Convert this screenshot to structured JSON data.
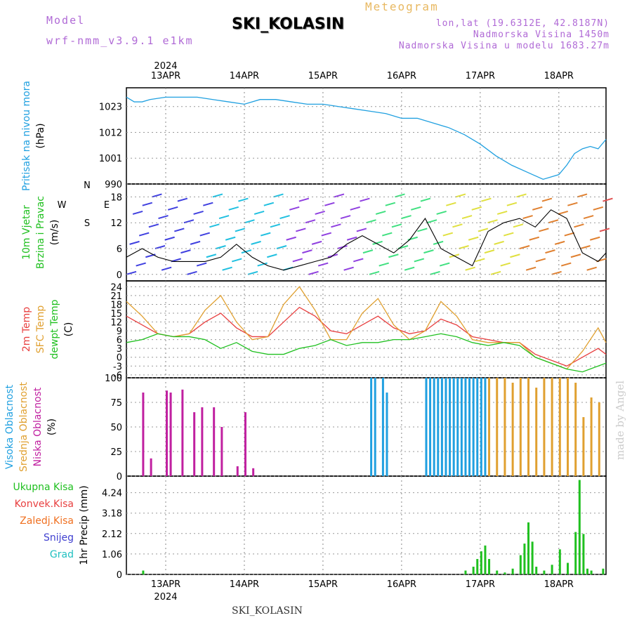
{
  "header": {
    "model_label": "Model",
    "model_name": "wrf-nmm_v3.9.1 e1km",
    "title": "SKI_KOLASIN",
    "meteogram": "Meteogram",
    "lonlat": "lon,lat (19.6312E, 42.8187N)",
    "altitude": "Nadmorska Visina 1450m",
    "model_altitude": "Nadmorska Visina u modelu 1683.27m",
    "year": "2024",
    "footer": "SKI_KOLASIN",
    "watermark": "made by Angel"
  },
  "colors": {
    "pressure": "#20a0e0",
    "temp2m": "#e84040",
    "sfc": "#e0a030",
    "dew": "#20c020",
    "high": "#20a0e0",
    "mid": "#e0a030",
    "low": "#c020a0",
    "total": "#20c020",
    "conv": "#e84040",
    "frz": "#f07020",
    "snow": "#4040d0",
    "grad": "#20c0c0"
  },
  "chart_data": [
    {
      "type": "line",
      "name": "pressure",
      "ylabel_lines": [
        "Pritisak na nivou mora",
        "(hPa)"
      ],
      "yticks": [
        990,
        1001,
        1012,
        1023
      ],
      "ylim": [
        990,
        1031
      ],
      "x": [
        0,
        0.1,
        0.2,
        0.3,
        0.5,
        0.7,
        0.9,
        1.1,
        1.3,
        1.5,
        1.7,
        1.9,
        2.1,
        2.3,
        2.5,
        2.7,
        2.9,
        3.1,
        3.3,
        3.5,
        3.7,
        3.9,
        4.1,
        4.3,
        4.5,
        4.7,
        4.9,
        5.1,
        5.3,
        5.5,
        5.6,
        5.7,
        5.8,
        5.9,
        6.0,
        6.1
      ],
      "y": [
        1027,
        1025,
        1025,
        1026,
        1027,
        1027,
        1027,
        1026,
        1025,
        1024,
        1026,
        1026,
        1025,
        1024,
        1024,
        1023,
        1022,
        1021,
        1020,
        1018,
        1018,
        1016,
        1014,
        1011,
        1007,
        1002,
        998,
        995,
        992,
        994,
        998,
        1003,
        1005,
        1006,
        1005,
        1009
      ]
    },
    {
      "type": "line",
      "name": "wind",
      "ylabel_lines": [
        "10m Vjetar",
        "Brzina i Pravac",
        "(m/s)"
      ],
      "compass": [
        "N",
        "E",
        "S",
        "W"
      ],
      "yticks": [
        0,
        6,
        12,
        18
      ],
      "ylim": [
        -1.5,
        21
      ],
      "x": [
        0,
        0.2,
        0.4,
        0.6,
        0.8,
        1.0,
        1.2,
        1.4,
        1.6,
        1.8,
        2.0,
        2.2,
        2.4,
        2.6,
        2.8,
        3.0,
        3.2,
        3.4,
        3.6,
        3.8,
        4.0,
        4.2,
        4.4,
        4.6,
        4.8,
        5.0,
        5.2,
        5.4,
        5.6,
        5.8,
        6.0,
        6.1
      ],
      "y": [
        4,
        6,
        4,
        3,
        3,
        3,
        4,
        7,
        4,
        2,
        1,
        2,
        3,
        4,
        7,
        9,
        7,
        5,
        8,
        13,
        6,
        4,
        2,
        10,
        12,
        13,
        11,
        15,
        13,
        5,
        3,
        5
      ]
    },
    {
      "type": "line",
      "name": "temperature",
      "ylabel_lines": [
        "2m Temp",
        "SFC Temp",
        "dewpt Temp",
        "(C)"
      ],
      "yticks": [
        -6,
        -3,
        0,
        3,
        6,
        9,
        12,
        15,
        18,
        21,
        24
      ],
      "ylim": [
        -7,
        26
      ],
      "x": [
        0,
        0.2,
        0.4,
        0.6,
        0.8,
        1.0,
        1.2,
        1.4,
        1.6,
        1.8,
        2.0,
        2.2,
        2.4,
        2.6,
        2.8,
        3.0,
        3.2,
        3.4,
        3.6,
        3.8,
        4.0,
        4.2,
        4.4,
        4.6,
        4.8,
        5.0,
        5.2,
        5.4,
        5.6,
        5.8,
        6.0,
        6.1
      ],
      "series": [
        {
          "name": "2m Temp",
          "values": [
            14,
            11,
            8,
            7,
            8,
            12,
            15,
            10,
            7,
            7,
            12,
            17,
            14,
            9,
            8,
            11,
            14,
            10,
            8,
            9,
            13,
            11,
            7,
            6,
            5,
            5,
            1,
            -1,
            -3,
            0,
            3,
            1
          ]
        },
        {
          "name": "SFC Temp",
          "values": [
            19,
            14,
            8,
            7,
            8,
            16,
            21,
            12,
            6,
            7,
            18,
            24,
            16,
            6,
            6,
            15,
            20,
            11,
            6,
            9,
            19,
            14,
            6,
            5,
            5,
            5,
            0,
            -2,
            -4,
            2,
            10,
            5
          ]
        },
        {
          "name": "dewpt Temp",
          "values": [
            5,
            6,
            8,
            7,
            7,
            6,
            3,
            5,
            2,
            1,
            1,
            3,
            4,
            6,
            4,
            5,
            5,
            6,
            6,
            7,
            8,
            7,
            5,
            4,
            5,
            4,
            0,
            -2,
            -4,
            -5,
            -3,
            -2
          ]
        }
      ]
    },
    {
      "type": "bar",
      "name": "cloud",
      "ylabel_lines": [
        "Visoka Oblacnost",
        "Srednja Oblacnost",
        "Niska Oblacnost",
        "(%)"
      ],
      "yticks": [
        0,
        25,
        50,
        75,
        100
      ],
      "ylim": [
        0,
        100
      ],
      "series": [
        {
          "name": "Niska",
          "x": [
            0.2,
            0.3,
            0.5,
            0.55,
            0.7,
            0.85,
            0.95,
            1.1,
            1.2,
            1.4,
            1.5,
            1.6
          ],
          "values": [
            85,
            18,
            87,
            85,
            88,
            65,
            70,
            70,
            50,
            10,
            65,
            8
          ]
        },
        {
          "name": "Visoka",
          "x": [
            3.1,
            3.15,
            3.25,
            3.3,
            3.8,
            3.85,
            3.9,
            3.95,
            4.0,
            4.05,
            4.1,
            4.15,
            4.2,
            4.25,
            4.3,
            4.35,
            4.4,
            4.45,
            4.5,
            4.55
          ],
          "values": [
            100,
            100,
            100,
            85,
            100,
            100,
            100,
            100,
            100,
            100,
            100,
            100,
            100,
            100,
            100,
            100,
            100,
            100,
            100,
            100
          ]
        },
        {
          "name": "Srednja",
          "x": [
            4.6,
            4.7,
            4.8,
            4.9,
            5.0,
            5.1,
            5.2,
            5.3,
            5.4,
            5.5,
            5.6,
            5.7,
            5.8,
            5.9,
            6.0
          ],
          "values": [
            100,
            100,
            100,
            95,
            100,
            100,
            90,
            100,
            100,
            100,
            100,
            95,
            60,
            80,
            75
          ]
        }
      ]
    },
    {
      "type": "bar",
      "name": "precip",
      "ylabel_lines": [
        "Ukupna Kisa",
        "Konvek.Kisa",
        "Zaledj.Kisa",
        "Snijeg",
        "Grad",
        "1hr Precip (mm)"
      ],
      "yticks": [
        0,
        1.06,
        2.12,
        3.18,
        4.24
      ],
      "ylim": [
        0,
        5.1
      ],
      "x": [
        0.2,
        4.3,
        4.4,
        4.45,
        4.5,
        4.55,
        4.6,
        4.7,
        4.8,
        4.9,
        5.0,
        5.05,
        5.1,
        5.15,
        5.2,
        5.3,
        5.4,
        5.5,
        5.6,
        5.7,
        5.75,
        5.8,
        5.85,
        5.9,
        6.05
      ],
      "values": [
        0.2,
        0.2,
        0.4,
        0.8,
        1.2,
        1.5,
        0.8,
        0.2,
        0.1,
        0.3,
        1.0,
        1.6,
        2.7,
        1.7,
        0.4,
        0.2,
        0.5,
        1.3,
        0.6,
        2.2,
        4.9,
        2.1,
        0.3,
        0.2,
        0.3
      ]
    }
  ],
  "xaxis": {
    "days": [
      "13APR",
      "14APR",
      "15APR",
      "16APR",
      "17APR",
      "18APR"
    ],
    "day_offsets": [
      0.5,
      1.5,
      2.5,
      3.5,
      4.5,
      5.5
    ],
    "xlim": [
      0,
      6.1
    ]
  }
}
